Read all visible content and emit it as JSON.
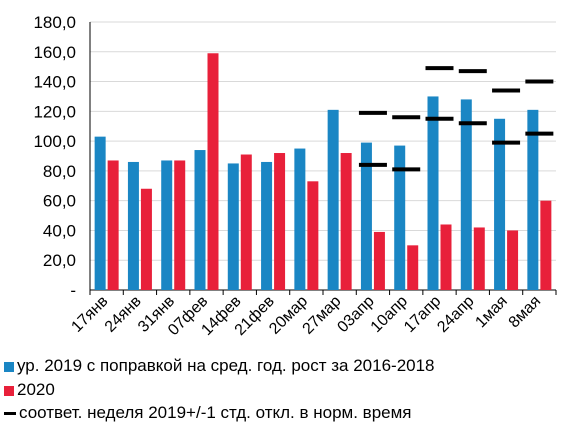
{
  "chart_data": {
    "type": "bar",
    "title": "",
    "xlabel": "",
    "ylabel": "",
    "ylim": [
      0,
      180
    ],
    "yticks": [
      {
        "value": 0,
        "label": "-"
      },
      {
        "value": 20,
        "label": "20,0"
      },
      {
        "value": 40,
        "label": "40,0"
      },
      {
        "value": 60,
        "label": "60,0"
      },
      {
        "value": 80,
        "label": "80,0"
      },
      {
        "value": 100,
        "label": "100,0"
      },
      {
        "value": 120,
        "label": "120,0"
      },
      {
        "value": 140,
        "label": "140,0"
      },
      {
        "value": 160,
        "label": "160,0"
      },
      {
        "value": 180,
        "label": "180,0"
      }
    ],
    "grid": "horizontal",
    "legend_placement": "bottom",
    "categories": [
      "17янв",
      "24янв",
      "31янв",
      "07фев",
      "14фев",
      "21фев",
      "20мар",
      "27мар",
      "03апр",
      "10апр",
      "17апр",
      "24апр",
      "1мая",
      "8мая"
    ],
    "series": [
      {
        "name": "ур. 2019 с поправкой на сред. год. рост за 2016-2018",
        "color": "#1a86c4",
        "values": [
          103,
          86,
          87,
          94,
          85,
          86,
          95,
          121,
          99,
          97,
          130,
          128,
          115,
          121
        ]
      },
      {
        "name": "2020",
        "color": "#e8203a",
        "values": [
          87,
          68,
          87,
          159,
          91,
          92,
          73,
          92,
          39,
          30,
          44,
          42,
          40,
          60
        ]
      }
    ],
    "range_markers": {
      "name": "соответ. неделя 2019+/-1 стд. откл. в норм. время",
      "color": "#000000",
      "upper": [
        null,
        null,
        null,
        null,
        null,
        null,
        null,
        null,
        119,
        116,
        149,
        147,
        134,
        140
      ],
      "lower": [
        null,
        null,
        null,
        null,
        null,
        null,
        null,
        null,
        84,
        81,
        115,
        112,
        99,
        105
      ]
    }
  }
}
